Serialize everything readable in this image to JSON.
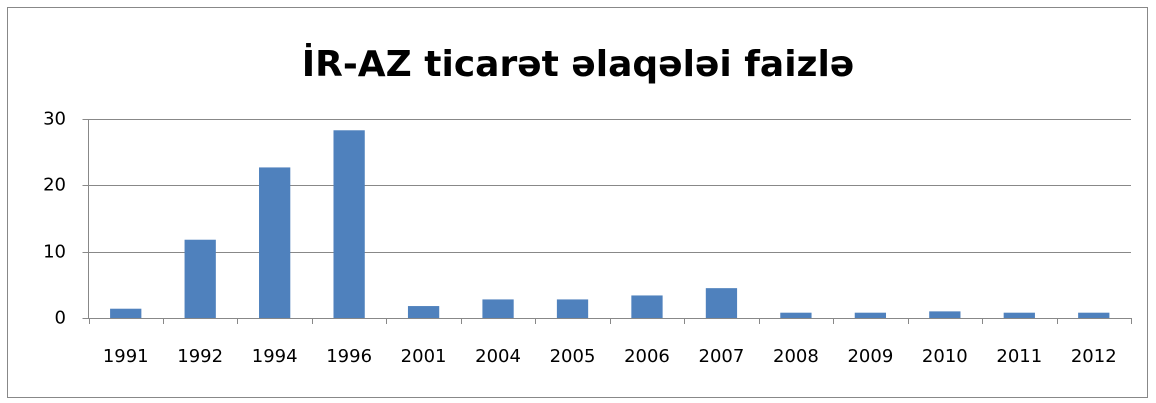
{
  "chart_data": {
    "type": "bar",
    "title": "İR-AZ ticarət əlaqələi faizlə",
    "categories": [
      "1991",
      "1992",
      "1994",
      "1996",
      "2001",
      "2004",
      "2005",
      "2006",
      "2007",
      "2008",
      "2009",
      "2010",
      "2011",
      "2012"
    ],
    "values": [
      1.4,
      11.8,
      22.7,
      28.3,
      1.8,
      2.8,
      2.8,
      3.4,
      4.5,
      0.8,
      0.8,
      1.0,
      0.8,
      0.8
    ],
    "color": "#4f81bd",
    "ylim": [
      0,
      30
    ],
    "yticks": [
      0,
      10,
      20,
      30
    ],
    "grid": true
  }
}
